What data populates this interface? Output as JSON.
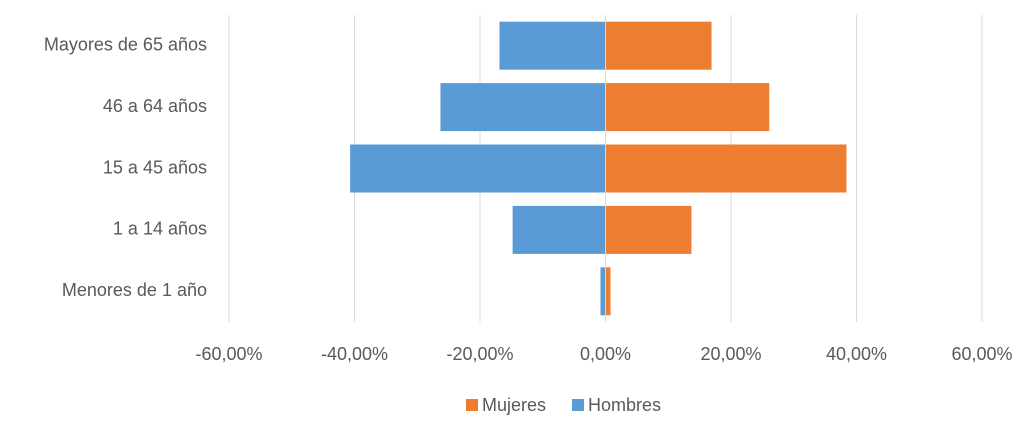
{
  "chart_data": {
    "type": "bar",
    "orientation": "horizontal",
    "categories": [
      "Mayores de 65 años",
      "46 a 64 años",
      "15 a 45 años",
      "1 a 14 años",
      "Menores de 1 año"
    ],
    "series": [
      {
        "name": "Mujeres",
        "color": "#ed7d31",
        "values": [
          16.9,
          26.1,
          38.4,
          13.7,
          0.8
        ]
      },
      {
        "name": "Hombres",
        "color": "#5b9bd5",
        "values": [
          -16.9,
          -26.3,
          -40.7,
          -14.8,
          -0.8
        ]
      }
    ],
    "xlim": [
      -60,
      60
    ],
    "xticks": [
      {
        "value": -60,
        "label": "-60,00%"
      },
      {
        "value": -40,
        "label": "-40,00%"
      },
      {
        "value": -20,
        "label": "-20,00%"
      },
      {
        "value": 0,
        "label": "0,00%"
      },
      {
        "value": 20,
        "label": "20,00%"
      },
      {
        "value": 40,
        "label": "40,00%"
      },
      {
        "value": 60,
        "label": "60,00%"
      }
    ],
    "grid": true,
    "legend": "bottom"
  }
}
